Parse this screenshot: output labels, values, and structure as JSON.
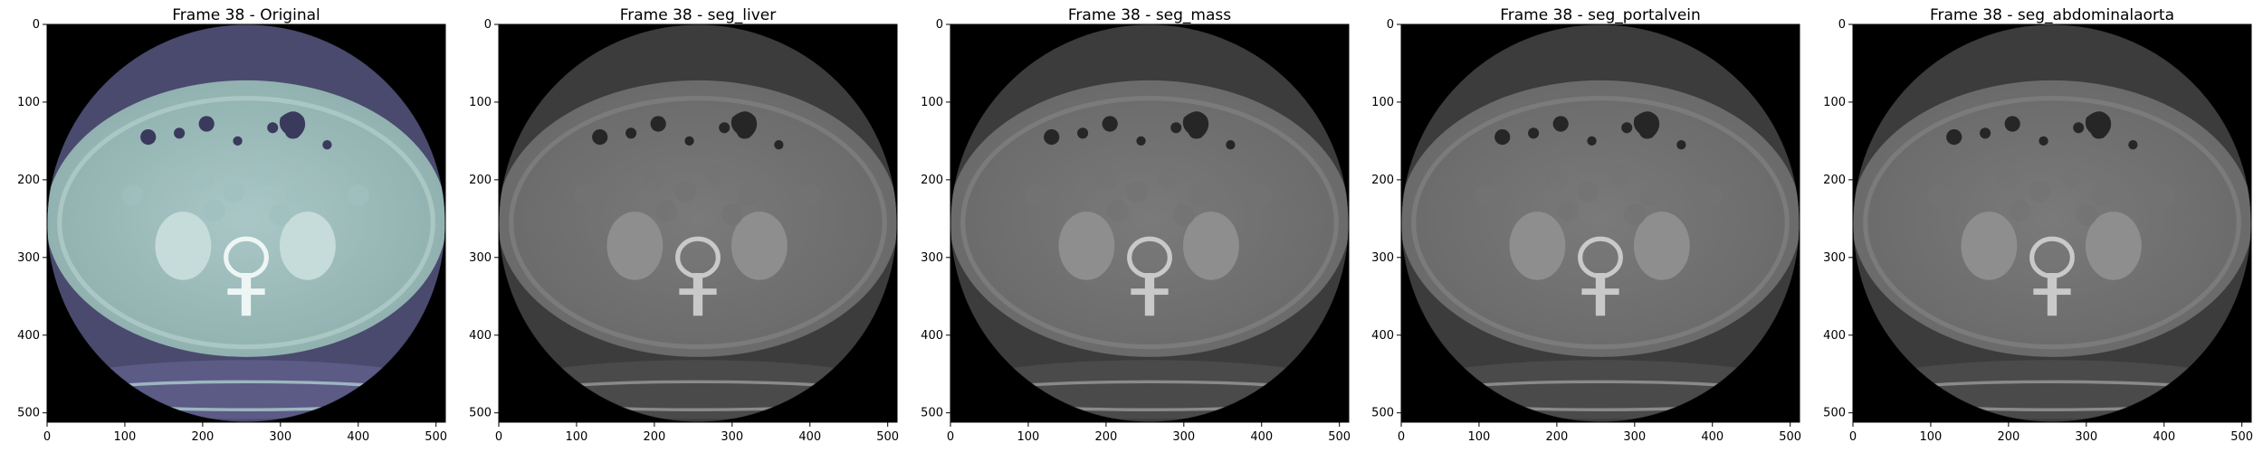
{
  "figure": {
    "panels": [
      {
        "title": "Frame 38 - Original",
        "colormap": "bone",
        "icon": "ct-slice-image"
      },
      {
        "title": "Frame 38 - seg_liver",
        "colormap": "gray-overlay",
        "icon": "ct-slice-image"
      },
      {
        "title": "Frame 38 - seg_mass",
        "colormap": "gray-overlay",
        "icon": "ct-slice-image"
      },
      {
        "title": "Frame 38 - seg_portalvein",
        "colormap": "gray-overlay",
        "icon": "ct-slice-image"
      },
      {
        "title": "Frame 38 - seg_abdominalaorta",
        "colormap": "gray-overlay",
        "icon": "ct-slice-image"
      }
    ],
    "x_ticks": [
      "0",
      "100",
      "200",
      "300",
      "400",
      "500"
    ],
    "y_ticks": [
      "0",
      "100",
      "200",
      "300",
      "400",
      "500"
    ],
    "axis_range": [
      0,
      512
    ]
  }
}
